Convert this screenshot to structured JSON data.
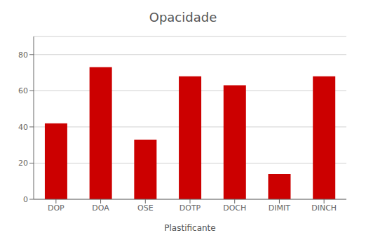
{
  "chart_data": {
    "type": "bar",
    "title": "Opacidade",
    "xlabel": "Plastificante",
    "categories": [
      "DOP",
      "DOA",
      "OSE",
      "DOTP",
      "DOCH",
      "DIMIT",
      "DINCH"
    ],
    "values": [
      42,
      73,
      33,
      68,
      63,
      14,
      68
    ],
    "color": "#cc0000",
    "ylim": [
      0,
      90
    ],
    "yticks": [
      0,
      20,
      40,
      60,
      80
    ],
    "grid": true
  }
}
